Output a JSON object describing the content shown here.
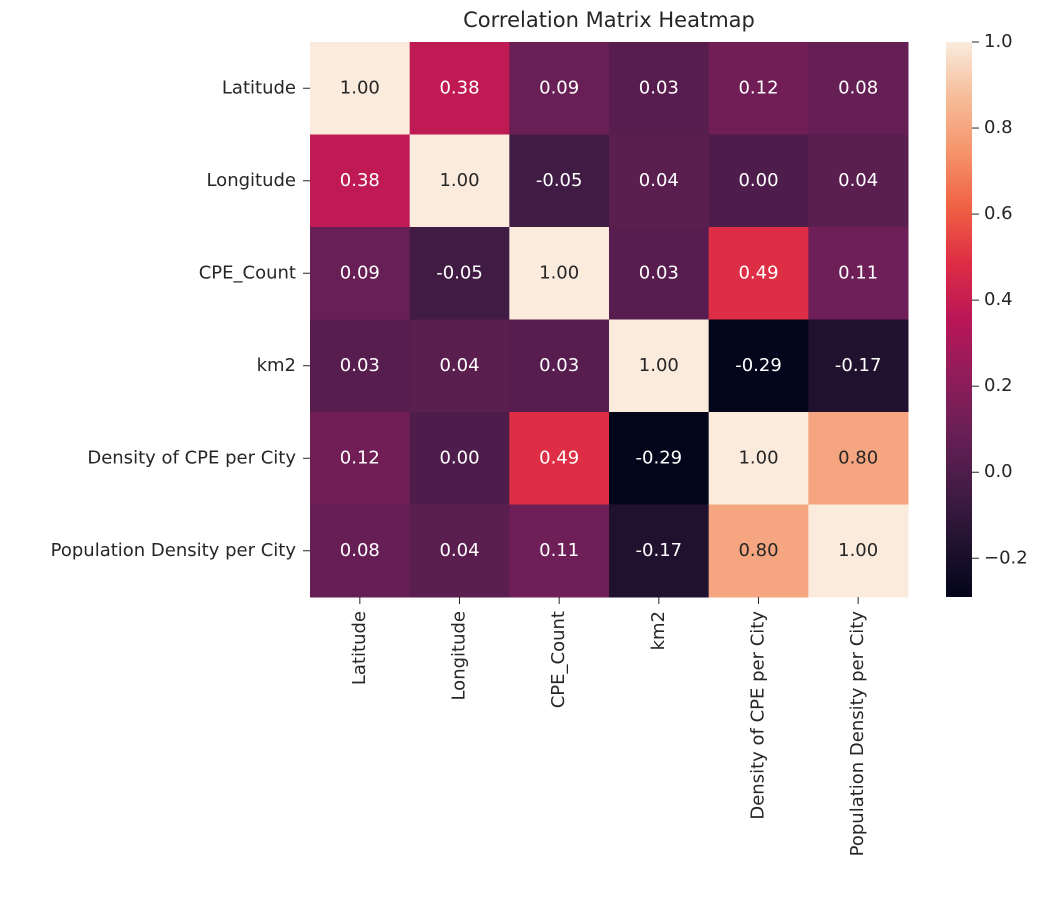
{
  "chart_data": {
    "type": "heatmap",
    "title": "Correlation Matrix Heatmap",
    "x_categories": [
      "Latitude",
      "Longitude",
      "CPE_Count",
      "km2",
      "Density of CPE per City",
      "Population Density per City"
    ],
    "y_categories": [
      "Latitude",
      "Longitude",
      "CPE_Count",
      "km2",
      "Density of CPE per City",
      "Population Density per City"
    ],
    "values": [
      [
        1,
        0.38,
        0.09,
        0.03,
        0.12,
        0.08
      ],
      [
        0.38,
        1,
        -0.05,
        0.04,
        0,
        0.04
      ],
      [
        0.09,
        -0.05,
        1,
        0.03,
        0.49,
        0.11
      ],
      [
        0.03,
        0.04,
        0.03,
        1,
        -0.29,
        -0.17
      ],
      [
        0.12,
        0,
        0.49,
        -0.29,
        1,
        0.8
      ],
      [
        0.08,
        0.04,
        0.11,
        -0.17,
        0.8,
        1
      ]
    ],
    "value_labels": [
      [
        "1.00",
        "0.38",
        "0.09",
        "0.03",
        "0.12",
        "0.08"
      ],
      [
        "0.38",
        "1.00",
        "-0.05",
        "0.04",
        "0.00",
        "0.04"
      ],
      [
        "0.09",
        "-0.05",
        "1.00",
        "0.03",
        "0.49",
        "0.11"
      ],
      [
        "0.03",
        "0.04",
        "0.03",
        "1.00",
        "-0.29",
        "-0.17"
      ],
      [
        "0.12",
        "0.00",
        "0.49",
        "-0.29",
        "1.00",
        "0.80"
      ],
      [
        "0.08",
        "0.04",
        "0.11",
        "-0.17",
        "0.80",
        "1.00"
      ]
    ],
    "colormap": "rocket",
    "clim": [
      -0.29,
      1
    ],
    "cticks": [
      {
        "value": -0.2,
        "label": "−0.2"
      },
      {
        "value": 0,
        "label": "0.0"
      },
      0.2,
      0.4,
      0.6,
      0.8,
      {
        "value": 1,
        "label": "1.0"
      }
    ]
  }
}
